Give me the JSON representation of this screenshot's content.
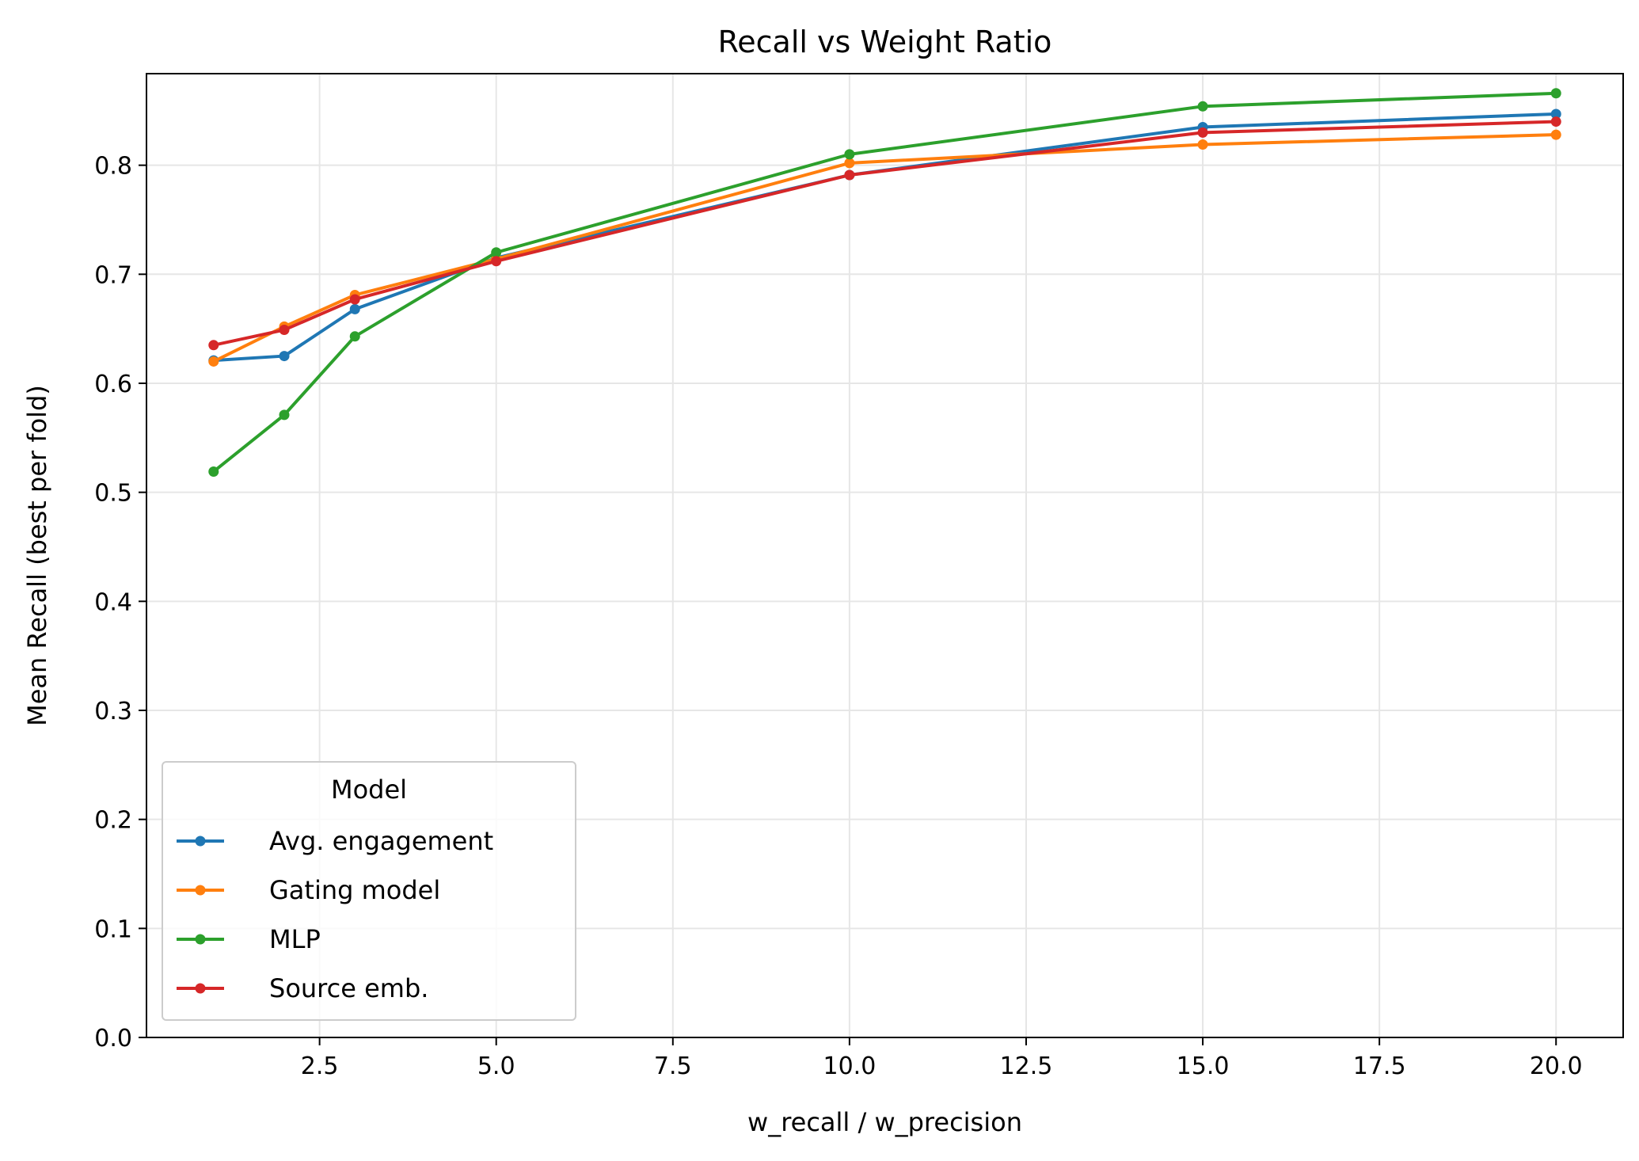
{
  "chart_data": {
    "type": "line",
    "title": "Recall vs Weight Ratio",
    "xlabel": "w_recall / w_precision",
    "ylabel": "Mean Recall (best per fold)",
    "xlim": [
      0.05,
      20.95
    ],
    "ylim": [
      0.0,
      0.884
    ],
    "xticks": [
      2.5,
      5.0,
      7.5,
      10.0,
      12.5,
      15.0,
      17.5,
      20.0
    ],
    "xtick_labels": [
      "2.5",
      "5.0",
      "7.5",
      "10.0",
      "12.5",
      "15.0",
      "17.5",
      "20.0"
    ],
    "yticks": [
      0.0,
      0.1,
      0.2,
      0.3,
      0.4,
      0.5,
      0.6,
      0.7,
      0.8
    ],
    "ytick_labels": [
      "0.0",
      "0.1",
      "0.2",
      "0.3",
      "0.4",
      "0.5",
      "0.6",
      "0.7",
      "0.8"
    ],
    "grid": true,
    "legend": {
      "title": "Model",
      "placement": "lower-left"
    },
    "x": [
      1,
      2,
      3,
      5,
      10,
      15,
      20
    ],
    "series": [
      {
        "name": "Avg. engagement",
        "color": "#1f77b4",
        "values": [
          0.621,
          0.625,
          0.668,
          0.715,
          0.791,
          0.835,
          0.847
        ]
      },
      {
        "name": "Gating model",
        "color": "#ff7f0e",
        "values": [
          0.62,
          0.652,
          0.681,
          0.714,
          0.802,
          0.819,
          0.828
        ]
      },
      {
        "name": "MLP",
        "color": "#2ca02c",
        "values": [
          0.519,
          0.571,
          0.643,
          0.72,
          0.81,
          0.854,
          0.866
        ]
      },
      {
        "name": "Source emb.",
        "color": "#d62728",
        "values": [
          0.635,
          0.649,
          0.677,
          0.712,
          0.791,
          0.83,
          0.84
        ]
      }
    ]
  }
}
